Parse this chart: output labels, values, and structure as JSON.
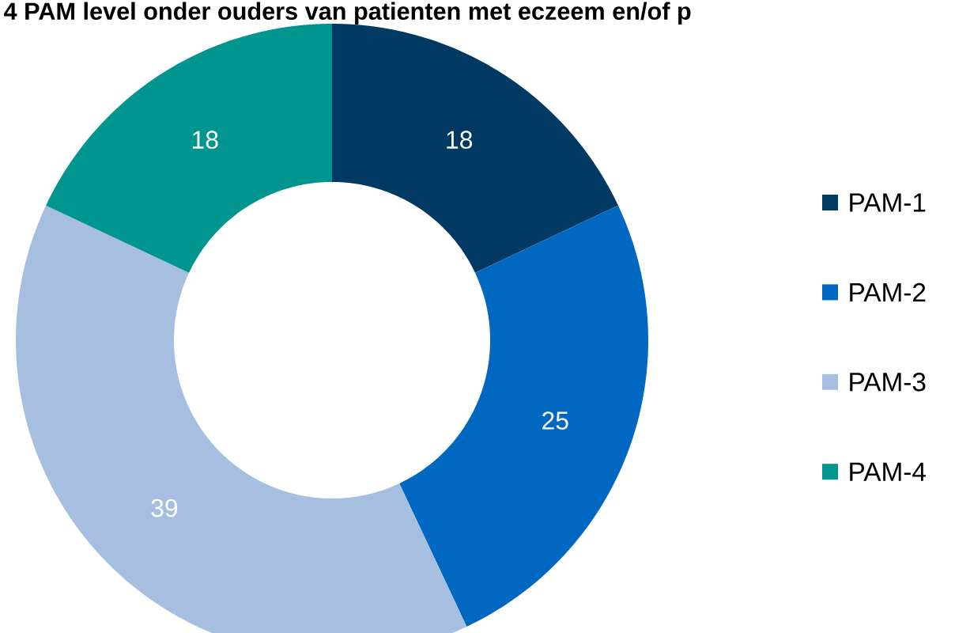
{
  "chart_data": {
    "type": "donut",
    "title": "4 PAM level onder ouders van patienten met eczeem en/of p",
    "categories": [
      "PAM-1",
      "PAM-2",
      "PAM-3",
      "PAM-4"
    ],
    "values": [
      18,
      25,
      39,
      18
    ],
    "colors": [
      "#003a63",
      "#0068c0",
      "#a6bfe0",
      "#00968f"
    ],
    "data_labels": true,
    "legend": "right"
  }
}
